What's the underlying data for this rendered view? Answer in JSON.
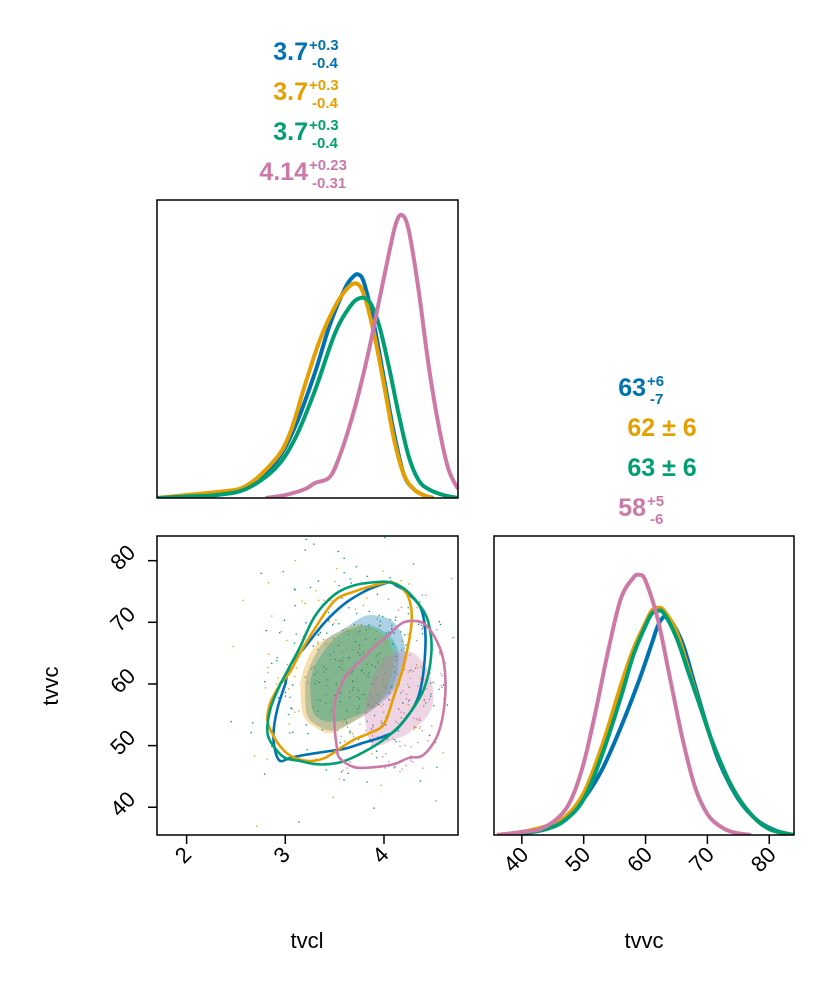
{
  "chart_data": [
    {
      "type": "line",
      "panel": "tvcl-marginal",
      "xlim": [
        1.7,
        4.75
      ],
      "ylim": [
        0,
        1.0
      ],
      "y_ticks_shown": false,
      "series": [
        {
          "color": "#0072B2",
          "summary": {
            "value": "3.7",
            "plus": "+0.3",
            "minus": "-0.4"
          },
          "x": [
            1.7,
            2.0,
            2.3,
            2.6,
            2.9,
            3.1,
            3.3,
            3.45,
            3.6,
            3.68,
            3.74,
            3.8,
            3.9,
            4.0,
            4.1,
            4.2,
            4.3,
            4.4,
            4.5
          ],
          "y": [
            0.0,
            0.005,
            0.01,
            0.04,
            0.12,
            0.24,
            0.42,
            0.58,
            0.7,
            0.74,
            0.75,
            0.72,
            0.58,
            0.4,
            0.22,
            0.08,
            0.03,
            0.01,
            0.0
          ]
        },
        {
          "color": "#E69F00",
          "summary": {
            "value": "3.7",
            "plus": "+0.3",
            "minus": "-0.4"
          },
          "x": [
            1.7,
            2.0,
            2.3,
            2.6,
            2.9,
            3.05,
            3.2,
            3.35,
            3.5,
            3.62,
            3.72,
            3.8,
            3.9,
            4.0,
            4.1,
            4.2,
            4.3,
            4.4,
            4.5
          ],
          "y": [
            0.0,
            0.01,
            0.02,
            0.04,
            0.13,
            0.22,
            0.38,
            0.53,
            0.64,
            0.7,
            0.72,
            0.68,
            0.55,
            0.38,
            0.2,
            0.08,
            0.03,
            0.01,
            0.0
          ]
        },
        {
          "color": "#009E73",
          "summary": {
            "value": "3.7",
            "plus": "+0.3",
            "minus": "-0.4"
          },
          "x": [
            1.7,
            2.0,
            2.3,
            2.6,
            2.9,
            3.1,
            3.3,
            3.5,
            3.65,
            3.75,
            3.85,
            3.95,
            4.05,
            4.15,
            4.25,
            4.35,
            4.45,
            4.6,
            4.75
          ],
          "y": [
            0.0,
            0.005,
            0.01,
            0.03,
            0.1,
            0.2,
            0.36,
            0.55,
            0.64,
            0.67,
            0.66,
            0.58,
            0.44,
            0.28,
            0.14,
            0.06,
            0.03,
            0.01,
            0.0
          ]
        },
        {
          "color": "#CC79A7",
          "summary": {
            "value": "4.14",
            "plus": "+0.23",
            "minus": "-0.31"
          },
          "x": [
            2.8,
            3.0,
            3.2,
            3.3,
            3.45,
            3.55,
            3.65,
            3.75,
            3.85,
            3.95,
            4.05,
            4.12,
            4.18,
            4.25,
            4.35,
            4.45,
            4.55,
            4.65,
            4.75
          ],
          "y": [
            0.0,
            0.01,
            0.03,
            0.05,
            0.07,
            0.14,
            0.24,
            0.36,
            0.5,
            0.66,
            0.82,
            0.92,
            0.95,
            0.9,
            0.7,
            0.45,
            0.25,
            0.1,
            0.03
          ]
        }
      ]
    },
    {
      "type": "scatter",
      "panel": "tvcl-vs-tvvc",
      "xlabel": "tvcl",
      "ylabel": "tvvc",
      "xlim": [
        1.7,
        4.75
      ],
      "ylim": [
        35.5,
        84
      ],
      "x_ticks": [
        "2",
        "3",
        "4"
      ],
      "y_ticks": [
        "40",
        "50",
        "60",
        "70",
        "80"
      ],
      "contours": [
        {
          "color": "#0072B2",
          "x": [
            3.0,
            2.92,
            2.88,
            2.9,
            2.95,
            3.05,
            3.2,
            3.4,
            3.6,
            3.8,
            4.0,
            4.15,
            4.35,
            4.42,
            4.38,
            4.22,
            4.12,
            4.08,
            4.05,
            3.95,
            3.8,
            3.6,
            3.4,
            3.2,
            3.05,
            3.0
          ],
          "y": [
            60,
            56,
            52,
            49,
            47.5,
            48,
            48.5,
            49,
            49.5,
            50.5,
            51.5,
            53,
            58,
            66,
            72,
            75,
            76,
            76.5,
            76.5,
            76,
            75,
            73,
            70,
            66,
            63,
            60
          ]
        },
        {
          "color": "#E69F00",
          "x": [
            2.95,
            2.85,
            2.82,
            2.9,
            3.0,
            3.1,
            3.25,
            3.4,
            3.55,
            3.7,
            3.85,
            4.0,
            4.1,
            4.2,
            4.28,
            4.25,
            4.15,
            4.05,
            3.9,
            3.7,
            3.5,
            3.3,
            3.15,
            3.05,
            2.95
          ],
          "y": [
            60,
            57,
            54,
            51,
            49,
            48,
            47.5,
            48,
            49.5,
            51,
            52,
            53.5,
            58,
            63,
            70,
            74,
            76,
            76.5,
            76,
            75,
            73.5,
            69,
            65,
            62,
            60
          ]
        },
        {
          "color": "#009E73",
          "x": [
            2.95,
            2.85,
            2.82,
            2.9,
            3.0,
            3.15,
            3.3,
            3.45,
            3.6,
            3.8,
            4.0,
            4.2,
            4.4,
            4.48,
            4.45,
            4.35,
            4.2,
            4.05,
            3.9,
            3.7,
            3.5,
            3.3,
            3.15,
            3.05,
            2.95
          ],
          "y": [
            60,
            56,
            52,
            49.5,
            48,
            47.5,
            47,
            47,
            47.5,
            49,
            51,
            54,
            59,
            65,
            70,
            73,
            75.5,
            76.5,
            76.5,
            76,
            74.5,
            71,
            66,
            63,
            60
          ]
        },
        {
          "color": "#CC79A7",
          "x": [
            3.6,
            3.5,
            3.5,
            3.52,
            3.55,
            3.7,
            3.9,
            4.1,
            4.25,
            4.4,
            4.55,
            4.62,
            4.6,
            4.5,
            4.38,
            4.2,
            4.05,
            3.9,
            3.78,
            3.68,
            3.6
          ],
          "y": [
            61,
            57,
            53,
            50,
            48,
            46.5,
            46.5,
            47,
            48,
            48.5,
            52,
            58,
            64,
            68,
            70,
            70,
            68,
            66,
            64,
            62.5,
            61
          ]
        }
      ],
      "filled_regions": [
        {
          "color": "#0072B2",
          "x": [
            3.2,
            3.22,
            3.35,
            3.5,
            3.7,
            3.9,
            4.1,
            4.2,
            4.2,
            4.1,
            3.95,
            3.8,
            3.6,
            3.4,
            3.25,
            3.2
          ],
          "y": [
            60,
            55,
            53,
            52.5,
            54,
            56,
            59,
            63,
            67,
            70,
            71,
            71,
            69,
            67,
            63,
            60
          ]
        },
        {
          "color": "#E69F00",
          "x": [
            3.15,
            3.18,
            3.3,
            3.45,
            3.6,
            3.8,
            3.95,
            4.05,
            4.1,
            4.05,
            3.9,
            3.7,
            3.5,
            3.3,
            3.2,
            3.15
          ],
          "y": [
            60,
            55,
            53,
            52,
            53,
            55,
            57,
            60,
            64,
            67,
            69,
            69.5,
            68,
            66,
            63,
            60
          ]
        },
        {
          "color": "#009E73",
          "x": [
            3.25,
            3.28,
            3.4,
            3.55,
            3.75,
            3.95,
            4.1,
            4.15,
            4.1,
            3.95,
            3.8,
            3.6,
            3.45,
            3.3,
            3.25
          ],
          "y": [
            60,
            55.5,
            54,
            54,
            55,
            57,
            60,
            64,
            67,
            69,
            69.5,
            68.5,
            66.5,
            63,
            60
          ]
        },
        {
          "color": "#CC79A7",
          "x": [
            3.8,
            3.85,
            3.95,
            4.1,
            4.25,
            4.45,
            4.5,
            4.45,
            4.3,
            4.1,
            3.95,
            3.85,
            3.8
          ],
          "y": [
            55,
            51,
            50,
            51,
            52,
            55,
            58,
            62,
            65,
            65,
            63,
            59,
            55
          ]
        }
      ]
    },
    {
      "type": "line",
      "panel": "tvvc-marginal",
      "xlabel": "tvvc",
      "xlim": [
        35.5,
        84
      ],
      "ylim": [
        0,
        1.0
      ],
      "x_ticks": [
        "40",
        "50",
        "60",
        "70",
        "80"
      ],
      "y_ticks_shown": false,
      "series": [
        {
          "color": "#0072B2",
          "summary": {
            "value": "63",
            "plus": "+6",
            "minus": "-7"
          },
          "x": [
            36,
            40,
            44,
            47,
            50,
            53,
            56,
            59,
            61,
            62,
            63,
            64,
            66,
            68,
            70,
            72,
            75,
            78,
            81,
            84
          ],
          "y": [
            0.0,
            0.005,
            0.02,
            0.05,
            0.12,
            0.22,
            0.36,
            0.52,
            0.64,
            0.7,
            0.73,
            0.72,
            0.64,
            0.5,
            0.36,
            0.24,
            0.12,
            0.05,
            0.015,
            0.0
          ]
        },
        {
          "color": "#E69F00",
          "summary": {
            "value": "62 ± 6",
            "plus": "",
            "minus": ""
          },
          "x": [
            36,
            40,
            44,
            47,
            50,
            53,
            56,
            58,
            60,
            61,
            62,
            63,
            65,
            67,
            69,
            71,
            74,
            77,
            80,
            84
          ],
          "y": [
            0.0,
            0.01,
            0.03,
            0.06,
            0.14,
            0.3,
            0.5,
            0.62,
            0.71,
            0.75,
            0.76,
            0.75,
            0.68,
            0.55,
            0.42,
            0.3,
            0.16,
            0.07,
            0.02,
            0.0
          ]
        },
        {
          "color": "#009E73",
          "summary": {
            "value": "63 ± 6",
            "plus": "",
            "minus": ""
          },
          "x": [
            36,
            40,
            44,
            47,
            50,
            53,
            56,
            58,
            60,
            61,
            62,
            63,
            65,
            67,
            69,
            71,
            74,
            77,
            80,
            84
          ],
          "y": [
            0.0,
            0.005,
            0.02,
            0.05,
            0.12,
            0.27,
            0.46,
            0.6,
            0.7,
            0.74,
            0.75,
            0.74,
            0.66,
            0.54,
            0.42,
            0.3,
            0.16,
            0.07,
            0.02,
            0.0
          ]
        },
        {
          "color": "#CC79A7",
          "summary": {
            "value": "58",
            "plus": "+5",
            "minus": "-6"
          },
          "x": [
            36,
            40,
            43,
            46,
            48,
            50,
            52,
            54,
            56,
            58,
            59,
            60,
            62,
            64,
            66,
            68,
            70,
            72,
            74,
            77
          ],
          "y": [
            0.0,
            0.01,
            0.02,
            0.06,
            0.12,
            0.24,
            0.42,
            0.62,
            0.79,
            0.86,
            0.87,
            0.85,
            0.72,
            0.52,
            0.32,
            0.16,
            0.07,
            0.03,
            0.01,
            0.0
          ]
        }
      ]
    }
  ]
}
